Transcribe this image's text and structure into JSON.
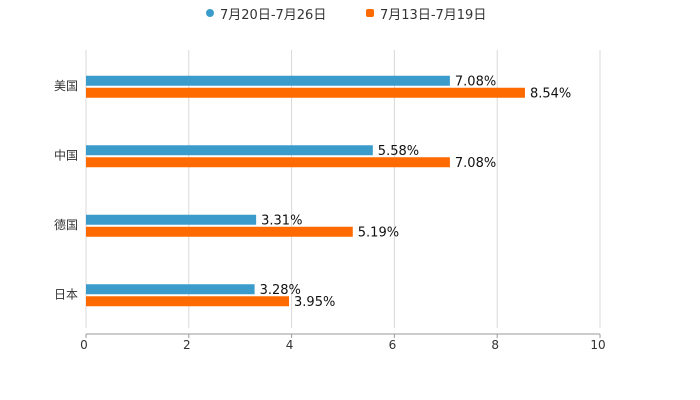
{
  "chart_data": {
    "type": "bar",
    "orientation": "horizontal",
    "title": "",
    "categories": [
      "美国",
      "中国",
      "德国",
      "日本"
    ],
    "series": [
      {
        "name": "7月20日-7月26日",
        "color": "#3b9ccc",
        "values": [
          7.08,
          5.58,
          3.31,
          3.28
        ],
        "labels": [
          "7.08%",
          "5.58%",
          "3.31%",
          "3.28%"
        ]
      },
      {
        "name": "7月13日-7月19日",
        "color": "#ff6a00",
        "values": [
          8.54,
          7.08,
          5.19,
          3.95
        ],
        "labels": [
          "8.54%",
          "7.08%",
          "5.19%",
          "3.95%"
        ]
      }
    ],
    "xlim": [
      0,
      10
    ],
    "xticks": [
      "0",
      "2",
      "4",
      "6",
      "8",
      "10"
    ],
    "xlabel": "",
    "ylabel": "",
    "grid": true,
    "legend_position": "top-center"
  }
}
